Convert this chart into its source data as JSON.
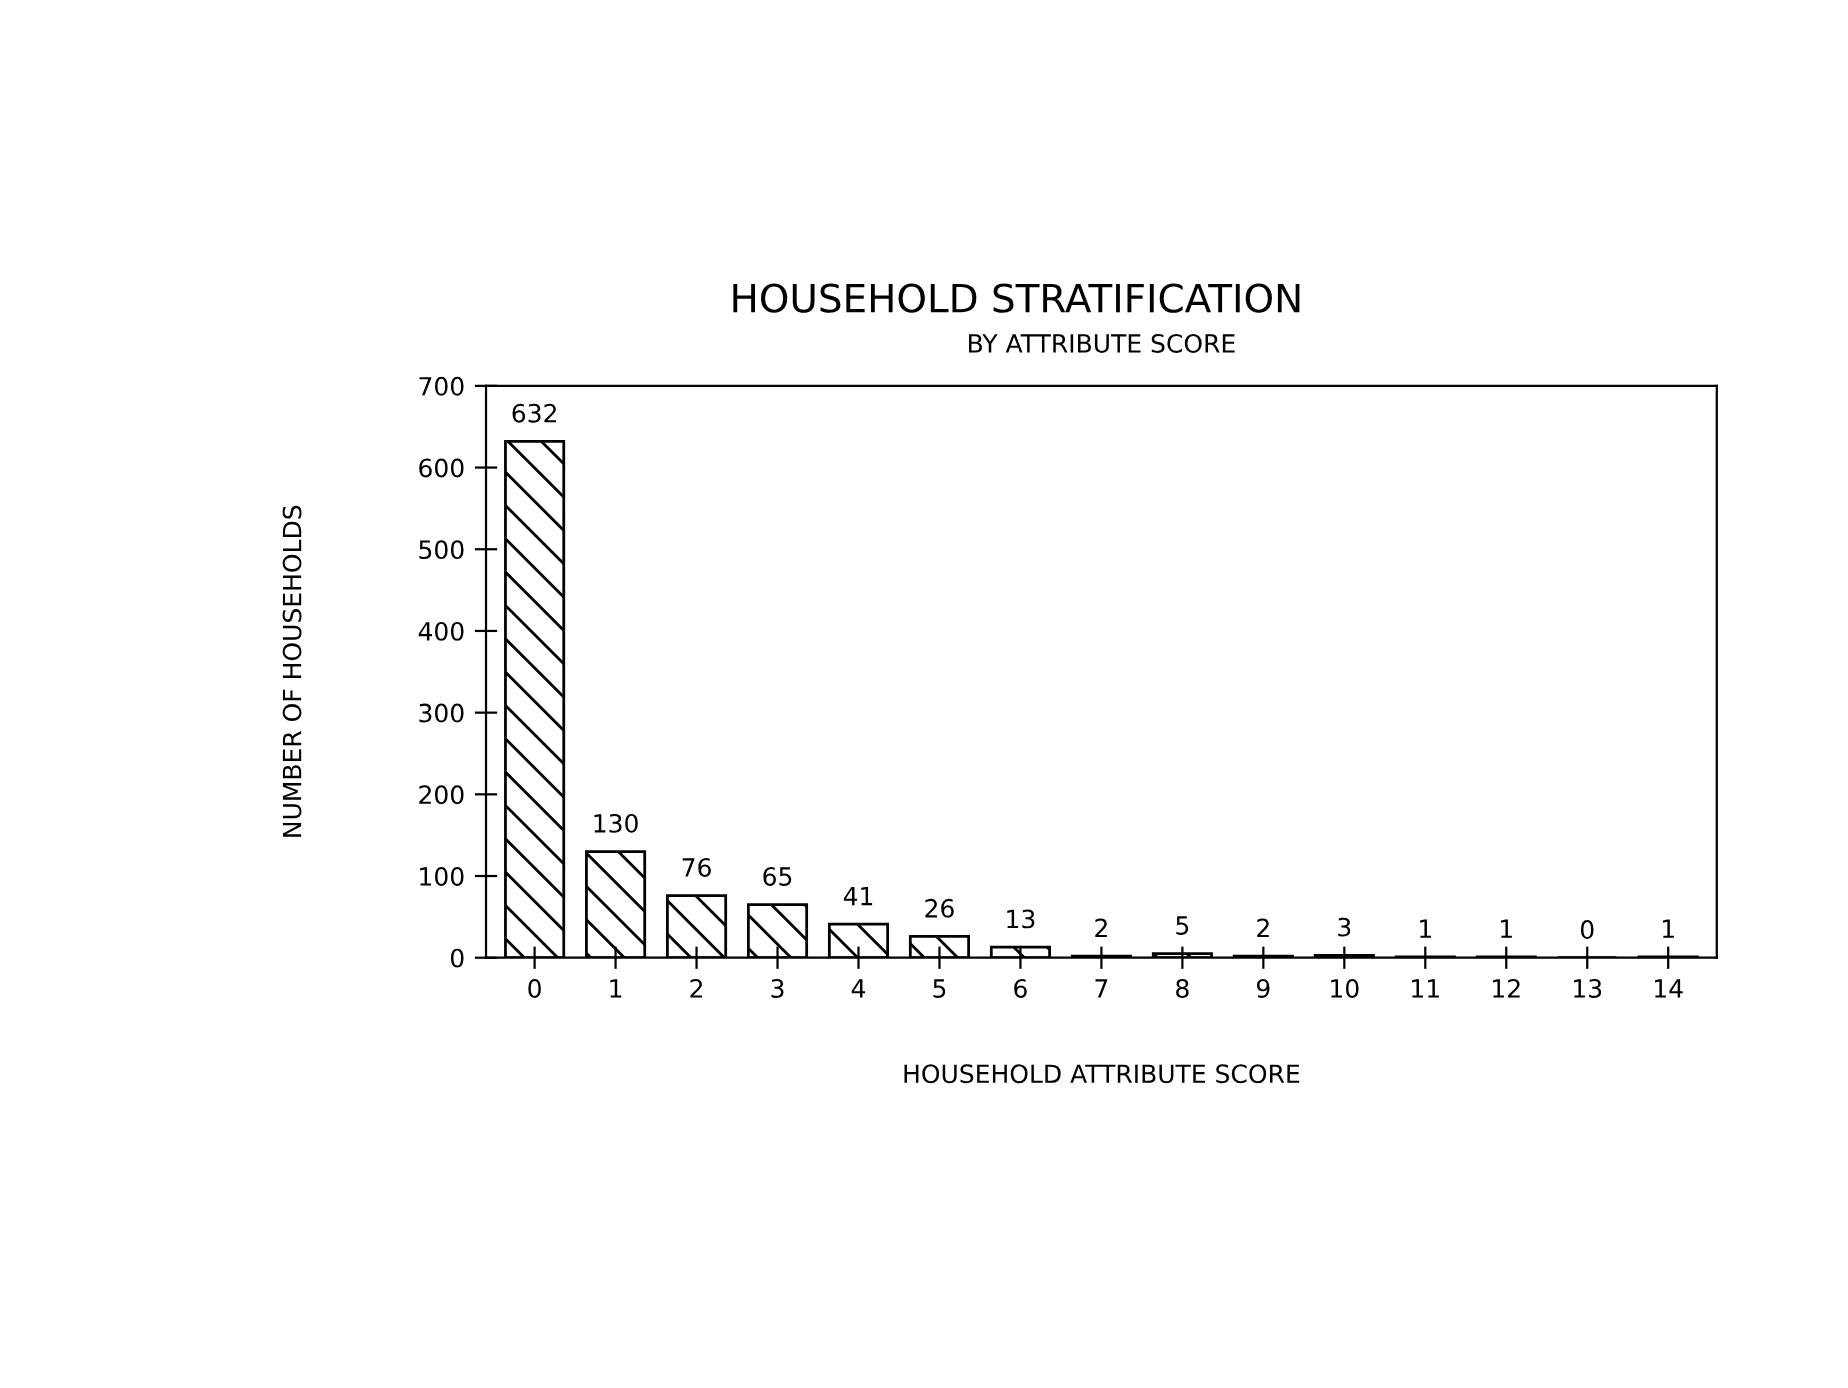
{
  "chart_data": {
    "type": "bar",
    "title": "HOUSEHOLD STRATIFICATION",
    "subtitle": "BY ATTRIBUTE SCORE",
    "xlabel": "HOUSEHOLD ATTRIBUTE SCORE",
    "ylabel": "NUMBER OF HOUSEHOLDS",
    "categories": [
      "0",
      "1",
      "2",
      "3",
      "4",
      "5",
      "6",
      "7",
      "8",
      "9",
      "10",
      "11",
      "12",
      "13",
      "14"
    ],
    "values": [
      632,
      130,
      76,
      65,
      41,
      26,
      13,
      2,
      5,
      2,
      3,
      1,
      1,
      0,
      1
    ],
    "color": "#000000",
    "ylim": [
      0,
      700
    ],
    "yticks": [
      0,
      100,
      200,
      300,
      400,
      500,
      600,
      700
    ],
    "grid": false,
    "data_labels": true
  }
}
